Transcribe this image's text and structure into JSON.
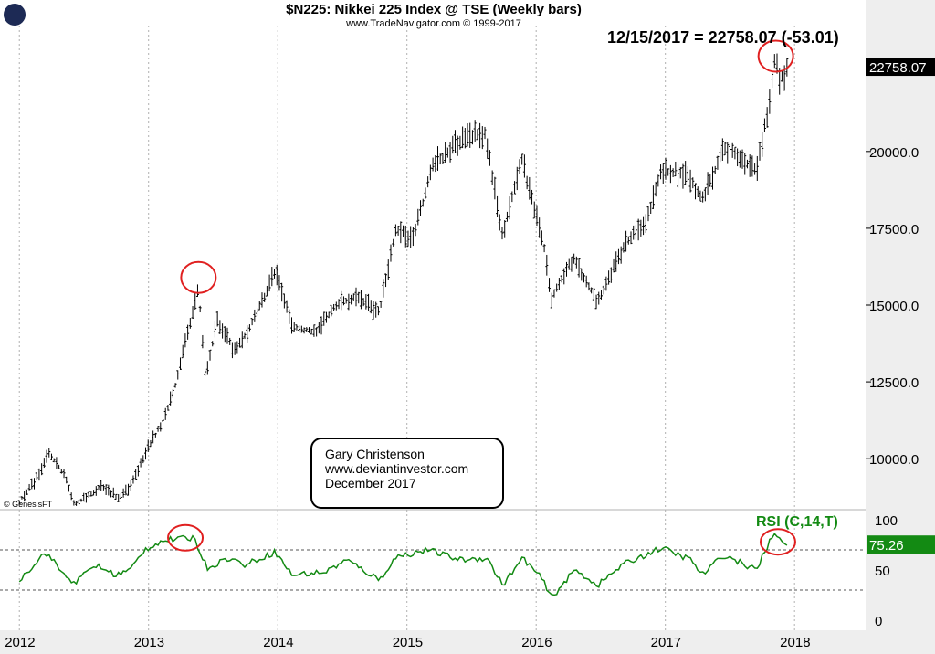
{
  "header": {
    "title": "$N225:  Nikkei 225 Index @ TSE  (Weekly bars)",
    "copyright": "www.TradeNavigator.com © 1999-2017",
    "last_value_label": "12/15/2017 = 22758.07 (-53.01)"
  },
  "watermark": "© GenesisFT",
  "note_box": {
    "line1": "Gary Christenson",
    "line2": "www.deviantinvestor.com",
    "line3": "December 2017"
  },
  "colors": {
    "price_bars": "#000000",
    "rsi_line": "#138a13",
    "highlight_circle": "#e02020",
    "grid": "#b0b0b0",
    "axis_background": "#eeeeee"
  },
  "chart_data": [
    {
      "type": "ohlc",
      "title": "$N225:  Nikkei 225 Index @ TSE  (Weekly bars)",
      "x_ticks": [
        "2012",
        "2013",
        "2014",
        "2015",
        "2016",
        "2017",
        "2018"
      ],
      "y_ticks": [
        "10000.0",
        "12500.0",
        "15000.0",
        "17500.0",
        "20000.0"
      ],
      "ylim": [
        8400,
        23800
      ],
      "last_value_tag": "22758.07",
      "grid": true,
      "series_path": [
        [
          "2012-01-01",
          8600
        ],
        [
          "2012-02-15",
          9300
        ],
        [
          "2012-03-25",
          10200
        ],
        [
          "2012-05-10",
          9400
        ],
        [
          "2012-06-05",
          8500
        ],
        [
          "2012-07-15",
          8800
        ],
        [
          "2012-08-20",
          9100
        ],
        [
          "2012-10-10",
          8700
        ],
        [
          "2012-11-15",
          9200
        ],
        [
          "2013-01-01",
          10400
        ],
        [
          "2013-02-15",
          11300
        ],
        [
          "2013-03-20",
          12500
        ],
        [
          "2013-05-22",
          15600
        ],
        [
          "2013-06-10",
          12700
        ],
        [
          "2013-07-15",
          14500
        ],
        [
          "2013-09-01",
          13500
        ],
        [
          "2013-10-15",
          14300
        ],
        [
          "2013-12-27",
          16100
        ],
        [
          "2014-02-10",
          14300
        ],
        [
          "2014-04-15",
          14100
        ],
        [
          "2014-06-15",
          15000
        ],
        [
          "2014-08-10",
          15300
        ],
        [
          "2014-10-15",
          14800
        ],
        [
          "2014-12-01",
          17500
        ],
        [
          "2015-01-15",
          17100
        ],
        [
          "2015-03-15",
          19500
        ],
        [
          "2015-06-15",
          20500
        ],
        [
          "2015-08-10",
          20600
        ],
        [
          "2015-09-28",
          17200
        ],
        [
          "2015-11-20",
          19800
        ],
        [
          "2016-01-25",
          16800
        ],
        [
          "2016-02-12",
          15200
        ],
        [
          "2016-04-15",
          16500
        ],
        [
          "2016-06-24",
          15100
        ],
        [
          "2016-09-01",
          16800
        ],
        [
          "2016-11-15",
          17900
        ],
        [
          "2016-12-20",
          19400
        ],
        [
          "2017-03-01",
          19300
        ],
        [
          "2017-04-14",
          18400
        ],
        [
          "2017-06-15",
          20100
        ],
        [
          "2017-08-15",
          19700
        ],
        [
          "2017-09-15",
          19300
        ],
        [
          "2017-10-20",
          21500
        ],
        [
          "2017-11-09",
          23300
        ],
        [
          "2017-11-20",
          22300
        ],
        [
          "2017-12-15",
          22758
        ]
      ],
      "annotations": [
        {
          "type": "circle",
          "date": "2013-05-22",
          "value": 15900
        },
        {
          "type": "circle",
          "date": "2017-11-09",
          "value": 23100
        }
      ]
    },
    {
      "type": "line",
      "title": "RSI (C,14,T)",
      "y_ticks": [
        "100",
        "50",
        "0"
      ],
      "reference_lines": [
        70,
        30
      ],
      "ylim": [
        -10,
        110
      ],
      "last_value_tag": "75.26",
      "series": [
        {
          "name": "RSI (C,14,T)",
          "points": [
            [
              "2012-01-01",
              40
            ],
            [
              "2012-03-15",
              68
            ],
            [
              "2012-05-15",
              42
            ],
            [
              "2012-06-10",
              38
            ],
            [
              "2012-08-01",
              55
            ],
            [
              "2012-10-01",
              45
            ],
            [
              "2012-11-10",
              50
            ],
            [
              "2012-12-20",
              70
            ],
            [
              "2013-02-01",
              78
            ],
            [
              "2013-03-01",
              80
            ],
            [
              "2013-05-10",
              82
            ],
            [
              "2013-06-15",
              52
            ],
            [
              "2013-08-15",
              62
            ],
            [
              "2013-10-01",
              55
            ],
            [
              "2013-12-25",
              68
            ],
            [
              "2014-02-10",
              45
            ],
            [
              "2014-05-15",
              48
            ],
            [
              "2014-07-15",
              60
            ],
            [
              "2014-10-15",
              40
            ],
            [
              "2014-12-01",
              63
            ],
            [
              "2015-03-01",
              70
            ],
            [
              "2015-06-01",
              60
            ],
            [
              "2015-08-15",
              62
            ],
            [
              "2015-09-28",
              35
            ],
            [
              "2015-11-25",
              62
            ],
            [
              "2016-01-20",
              40
            ],
            [
              "2016-02-12",
              22
            ],
            [
              "2016-04-20",
              50
            ],
            [
              "2016-06-24",
              35
            ],
            [
              "2016-09-01",
              55
            ],
            [
              "2016-12-20",
              72
            ],
            [
              "2017-03-15",
              60
            ],
            [
              "2017-04-15",
              45
            ],
            [
              "2017-06-15",
              65
            ],
            [
              "2017-09-15",
              50
            ],
            [
              "2017-10-25",
              80
            ],
            [
              "2017-11-09",
              85
            ],
            [
              "2017-12-15",
              75.26
            ]
          ]
        }
      ],
      "annotations": [
        {
          "type": "circle",
          "date": "2013-04-15",
          "value": 82
        },
        {
          "type": "circle",
          "date": "2017-11-15",
          "value": 78
        }
      ]
    }
  ]
}
